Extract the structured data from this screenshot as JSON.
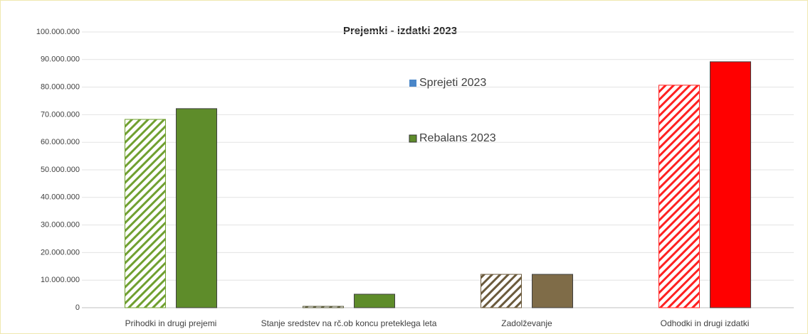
{
  "chart_data": {
    "type": "bar",
    "title": "Prejemki - izdatki 2023",
    "categories": [
      "Prihodki in drugi prejemi",
      "Stanje sredstev na rč.ob koncu preteklega leta",
      "Zadolževanje",
      "Odhodki in drugi izdatki"
    ],
    "series": [
      {
        "name": "Sprejeti 2023",
        "color": "#4a86c8",
        "hatched": true,
        "point_colors": [
          "#70a030",
          "#5a5a3a",
          "#6b5a3c",
          "#ff2020"
        ],
        "values": [
          68300000,
          500000,
          12100000,
          80700000
        ]
      },
      {
        "name": "Rebalans 2023",
        "color": "#5e8c2a",
        "hatched": false,
        "point_colors": [
          "#5e8c2a",
          "#5e8c2a",
          "#7f6c48",
          "#ff0000"
        ],
        "values": [
          72200000,
          4900000,
          12100000,
          89200000
        ]
      }
    ],
    "ylim": [
      0,
      100000000
    ],
    "yticks": [
      0,
      {
        "value": 10000000,
        "label": "10.000.000"
      },
      {
        "value": 20000000,
        "label": "20.000.000"
      },
      {
        "value": 30000000,
        "label": "30.000.000"
      },
      {
        "value": 40000000,
        "label": "40.000.000"
      },
      {
        "value": 50000000,
        "label": "50.000.000"
      },
      {
        "value": 60000000,
        "label": "60.000.000"
      },
      {
        "value": 70000000,
        "label": "70.000.000"
      },
      {
        "value": 80000000,
        "label": "80.000.000"
      },
      {
        "value": 90000000,
        "label": "90.000.000"
      },
      {
        "value": 100000000,
        "label": "100.000.000"
      }
    ],
    "grid": true
  }
}
